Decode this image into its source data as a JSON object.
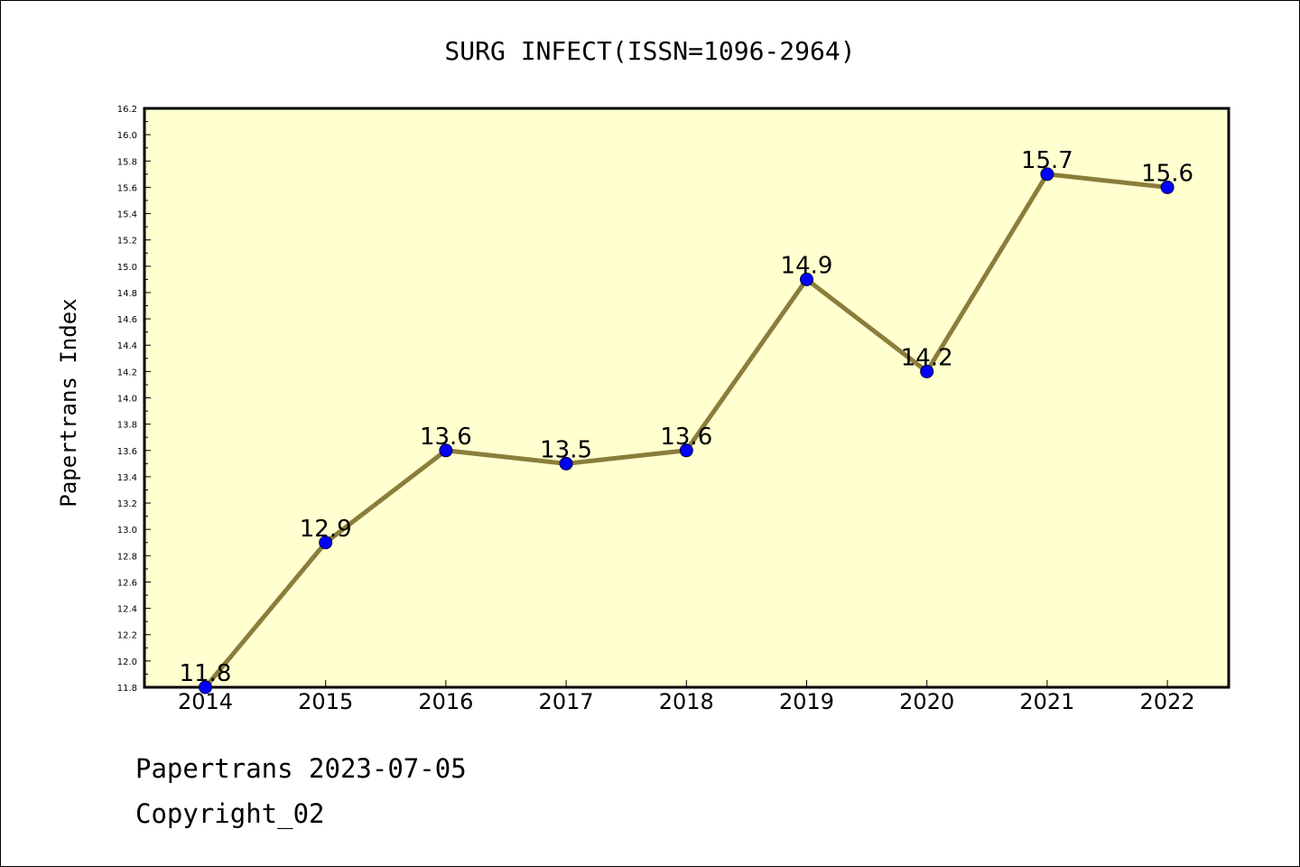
{
  "footer": {
    "line1": "Papertrans 2023-07-05",
    "line2": "Copyright_02"
  },
  "colors": {
    "plot_background": "#ffffd0",
    "line": "#8b7d3a",
    "marker": "#0000ff",
    "axis": "#000000"
  },
  "chart_data": {
    "type": "line",
    "title": "SURG INFECT(ISSN=1096-2964)",
    "xlabel": "",
    "ylabel": "Papertrans Index",
    "categories": [
      "2014",
      "2015",
      "2016",
      "2017",
      "2018",
      "2019",
      "2020",
      "2021",
      "2022"
    ],
    "series": [
      {
        "values": [
          11.8,
          12.9,
          13.6,
          13.5,
          13.6,
          14.9,
          14.2,
          15.7,
          15.6
        ]
      }
    ],
    "data_labels": [
      "11.8",
      "12.9",
      "13.6",
      "13.5",
      "13.6",
      "14.9",
      "14.2",
      "15.7",
      "15.6"
    ],
    "ylim": [
      11.8,
      16.2
    ],
    "yticks": [
      "11.8",
      "12.0",
      "12.2",
      "12.4",
      "12.6",
      "12.8",
      "13.0",
      "13.2",
      "13.4",
      "13.6",
      "13.8",
      "14.0",
      "14.2",
      "14.4",
      "14.6",
      "14.8",
      "15.0",
      "15.2",
      "15.4",
      "15.6",
      "15.8",
      "16.0",
      "16.2"
    ],
    "grid": false,
    "legend": "none"
  }
}
